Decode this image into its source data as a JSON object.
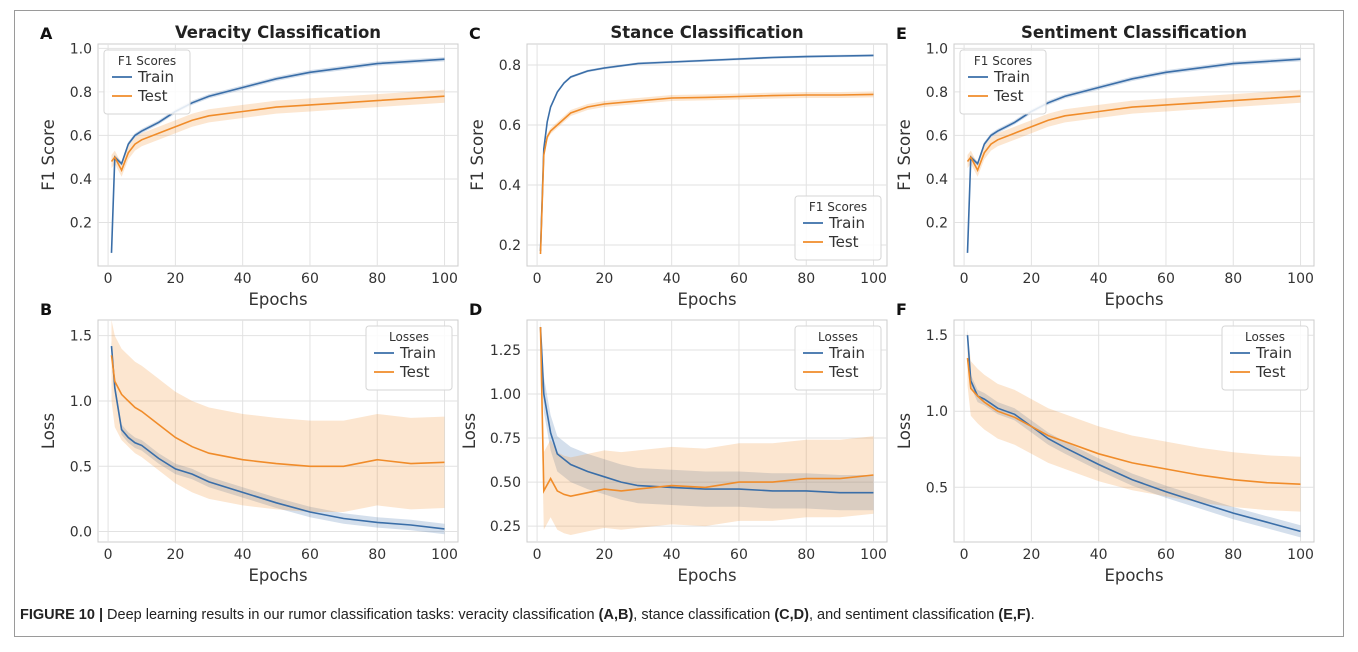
{
  "caption": {
    "label": "FIGURE 10 |",
    "text_1": " Deep learning results in our rumor classification tasks: veracity classification ",
    "ref_ab": "(A,B)",
    "text_2": ", stance classification ",
    "ref_cd": "(C,D)",
    "text_3": ", and sentiment classification ",
    "ref_ef": "(E,F)",
    "text_4": "."
  },
  "colors": {
    "train": "#3a6ea8",
    "test": "#f08c2a",
    "grid": "#e2e2e2",
    "spine": "#cccccc"
  },
  "chart_data": [
    {
      "panel": "A",
      "type": "line",
      "title": "Veracity Classification",
      "xlabel": "Epochs",
      "ylabel": "F1 Score",
      "xlim": [
        -3,
        104
      ],
      "ylim": [
        0,
        1.02
      ],
      "xticks": [
        0,
        20,
        40,
        60,
        80,
        100
      ],
      "yticks": [
        0.2,
        0.4,
        0.6,
        0.8,
        1.0
      ],
      "ytick_labels": [
        "0.2",
        "0.4",
        "0.6",
        "0.8",
        "1.0"
      ],
      "grid": true,
      "legend": {
        "title": "F1 Scores",
        "placement": "top-left"
      },
      "series": [
        {
          "name": "Train",
          "x": [
            1,
            2,
            4,
            6,
            8,
            10,
            15,
            20,
            25,
            30,
            40,
            50,
            60,
            70,
            80,
            90,
            100
          ],
          "y": [
            0.06,
            0.5,
            0.47,
            0.56,
            0.6,
            0.62,
            0.66,
            0.71,
            0.75,
            0.78,
            0.82,
            0.86,
            0.89,
            0.91,
            0.93,
            0.94,
            0.95
          ],
          "band": 0.01
        },
        {
          "name": "Test",
          "x": [
            1,
            2,
            4,
            6,
            8,
            10,
            15,
            20,
            25,
            30,
            40,
            50,
            60,
            70,
            80,
            90,
            100
          ],
          "y": [
            0.48,
            0.5,
            0.44,
            0.52,
            0.56,
            0.58,
            0.61,
            0.64,
            0.67,
            0.69,
            0.71,
            0.73,
            0.74,
            0.75,
            0.76,
            0.77,
            0.78
          ],
          "band": 0.03
        }
      ]
    },
    {
      "panel": "B",
      "type": "line",
      "title": "",
      "xlabel": "Epochs",
      "ylabel": "Loss",
      "xlim": [
        -3,
        104
      ],
      "ylim": [
        -0.08,
        1.62
      ],
      "xticks": [
        0,
        20,
        40,
        60,
        80,
        100
      ],
      "yticks": [
        0.0,
        0.5,
        1.0,
        1.5
      ],
      "ytick_labels": [
        "0.0",
        "0.5",
        "1.0",
        "1.5"
      ],
      "grid": true,
      "legend": {
        "title": "Losses",
        "placement": "top-right"
      },
      "series": [
        {
          "name": "Train",
          "x": [
            1,
            2,
            4,
            6,
            8,
            10,
            15,
            20,
            25,
            30,
            40,
            50,
            60,
            70,
            80,
            90,
            100
          ],
          "y": [
            1.42,
            1.1,
            0.78,
            0.72,
            0.68,
            0.66,
            0.56,
            0.48,
            0.44,
            0.38,
            0.3,
            0.22,
            0.15,
            0.1,
            0.07,
            0.05,
            0.02
          ],
          "band": 0.04
        },
        {
          "name": "Test",
          "x": [
            1,
            2,
            4,
            6,
            8,
            10,
            15,
            20,
            25,
            30,
            40,
            50,
            60,
            70,
            80,
            90,
            100
          ],
          "y": [
            1.35,
            1.15,
            1.05,
            1.0,
            0.95,
            0.92,
            0.82,
            0.72,
            0.65,
            0.6,
            0.55,
            0.52,
            0.5,
            0.5,
            0.55,
            0.52,
            0.53
          ],
          "band": 0.35
        }
      ]
    },
    {
      "panel": "C",
      "type": "line",
      "title": "Stance Classification",
      "xlabel": "Epochs",
      "ylabel": "F1 Score",
      "xlim": [
        -3,
        104
      ],
      "ylim": [
        0.13,
        0.87
      ],
      "xticks": [
        0,
        20,
        40,
        60,
        80,
        100
      ],
      "yticks": [
        0.2,
        0.4,
        0.6,
        0.8
      ],
      "ytick_labels": [
        "0.2",
        "0.4",
        "0.6",
        "0.8"
      ],
      "grid": true,
      "legend": {
        "title": "F1 Scores",
        "placement": "bottom-right"
      },
      "series": [
        {
          "name": "Train",
          "x": [
            1,
            2,
            3,
            4,
            6,
            8,
            10,
            15,
            20,
            30,
            40,
            50,
            60,
            70,
            80,
            90,
            100
          ],
          "y": [
            0.18,
            0.52,
            0.61,
            0.66,
            0.71,
            0.74,
            0.76,
            0.78,
            0.79,
            0.805,
            0.81,
            0.815,
            0.82,
            0.825,
            0.828,
            0.83,
            0.832
          ],
          "band": 0.004
        },
        {
          "name": "Test",
          "x": [
            1,
            2,
            3,
            4,
            6,
            8,
            10,
            15,
            20,
            30,
            40,
            50,
            60,
            70,
            80,
            90,
            100
          ],
          "y": [
            0.17,
            0.5,
            0.56,
            0.58,
            0.6,
            0.62,
            0.64,
            0.66,
            0.67,
            0.68,
            0.69,
            0.692,
            0.695,
            0.698,
            0.7,
            0.7,
            0.702
          ],
          "band": 0.01
        }
      ]
    },
    {
      "panel": "D",
      "type": "line",
      "title": "",
      "xlabel": "Epochs",
      "ylabel": "Loss",
      "xlim": [
        -3,
        104
      ],
      "ylim": [
        0.16,
        1.42
      ],
      "xticks": [
        0,
        20,
        40,
        60,
        80,
        100
      ],
      "yticks": [
        0.25,
        0.5,
        0.75,
        1.0,
        1.25
      ],
      "ytick_labels": [
        "0.25",
        "0.50",
        "0.75",
        "1.00",
        "1.25"
      ],
      "grid": true,
      "legend": {
        "title": "Losses",
        "placement": "top-right"
      },
      "series": [
        {
          "name": "Train",
          "x": [
            1,
            2,
            4,
            6,
            8,
            10,
            15,
            20,
            25,
            30,
            40,
            50,
            60,
            70,
            80,
            90,
            100
          ],
          "y": [
            1.38,
            1.0,
            0.78,
            0.66,
            0.63,
            0.6,
            0.56,
            0.53,
            0.5,
            0.48,
            0.47,
            0.46,
            0.46,
            0.45,
            0.45,
            0.44,
            0.44
          ],
          "band": 0.1
        },
        {
          "name": "Test",
          "x": [
            1,
            2,
            4,
            6,
            8,
            10,
            15,
            20,
            25,
            30,
            40,
            50,
            60,
            70,
            80,
            90,
            100
          ],
          "y": [
            1.38,
            0.45,
            0.52,
            0.45,
            0.43,
            0.42,
            0.44,
            0.46,
            0.45,
            0.46,
            0.48,
            0.47,
            0.5,
            0.5,
            0.52,
            0.52,
            0.54
          ],
          "band": 0.22
        }
      ]
    },
    {
      "panel": "E",
      "type": "line",
      "title": "Sentiment Classification",
      "xlabel": "Epochs",
      "ylabel": "F1 Score",
      "xlim": [
        -3,
        104
      ],
      "ylim": [
        0,
        1.02
      ],
      "xticks": [
        0,
        20,
        40,
        60,
        80,
        100
      ],
      "yticks": [
        0.2,
        0.4,
        0.6,
        0.8,
        1.0
      ],
      "ytick_labels": [
        "0.2",
        "0.4",
        "0.6",
        "0.8",
        "1.0"
      ],
      "grid": true,
      "legend": {
        "title": "F1 Scores",
        "placement": "top-left"
      },
      "series": [
        {
          "name": "Train",
          "x": [
            1,
            2,
            4,
            6,
            8,
            10,
            15,
            20,
            25,
            30,
            40,
            50,
            60,
            70,
            80,
            90,
            100
          ],
          "y": [
            0.06,
            0.5,
            0.47,
            0.56,
            0.6,
            0.62,
            0.66,
            0.71,
            0.75,
            0.78,
            0.82,
            0.86,
            0.89,
            0.91,
            0.93,
            0.94,
            0.95
          ],
          "band": 0.01
        },
        {
          "name": "Test",
          "x": [
            1,
            2,
            4,
            6,
            8,
            10,
            15,
            20,
            25,
            30,
            40,
            50,
            60,
            70,
            80,
            90,
            100
          ],
          "y": [
            0.48,
            0.5,
            0.44,
            0.52,
            0.56,
            0.58,
            0.61,
            0.64,
            0.67,
            0.69,
            0.71,
            0.73,
            0.74,
            0.75,
            0.76,
            0.77,
            0.78
          ],
          "band": 0.03
        }
      ]
    },
    {
      "panel": "F",
      "type": "line",
      "title": "",
      "xlabel": "Epochs",
      "ylabel": "Loss",
      "xlim": [
        -3,
        104
      ],
      "ylim": [
        0.14,
        1.6
      ],
      "xticks": [
        0,
        20,
        40,
        60,
        80,
        100
      ],
      "yticks": [
        0.5,
        1.0,
        1.5
      ],
      "ytick_labels": [
        "0.5",
        "1.0",
        "1.5"
      ],
      "grid": true,
      "legend": {
        "title": "Losses",
        "placement": "top-right"
      },
      "series": [
        {
          "name": "Train",
          "x": [
            1,
            2,
            4,
            6,
            8,
            10,
            15,
            20,
            25,
            30,
            40,
            50,
            60,
            70,
            80,
            90,
            100
          ],
          "y": [
            1.5,
            1.2,
            1.1,
            1.08,
            1.05,
            1.02,
            0.98,
            0.9,
            0.82,
            0.76,
            0.65,
            0.55,
            0.47,
            0.4,
            0.33,
            0.27,
            0.21
          ],
          "band": 0.04
        },
        {
          "name": "Test",
          "x": [
            1,
            2,
            4,
            6,
            8,
            10,
            15,
            20,
            25,
            30,
            40,
            50,
            60,
            70,
            80,
            90,
            100
          ],
          "y": [
            1.35,
            1.15,
            1.1,
            1.06,
            1.03,
            1.0,
            0.96,
            0.9,
            0.84,
            0.8,
            0.72,
            0.66,
            0.62,
            0.58,
            0.55,
            0.53,
            0.52
          ],
          "band": 0.18
        }
      ]
    }
  ]
}
